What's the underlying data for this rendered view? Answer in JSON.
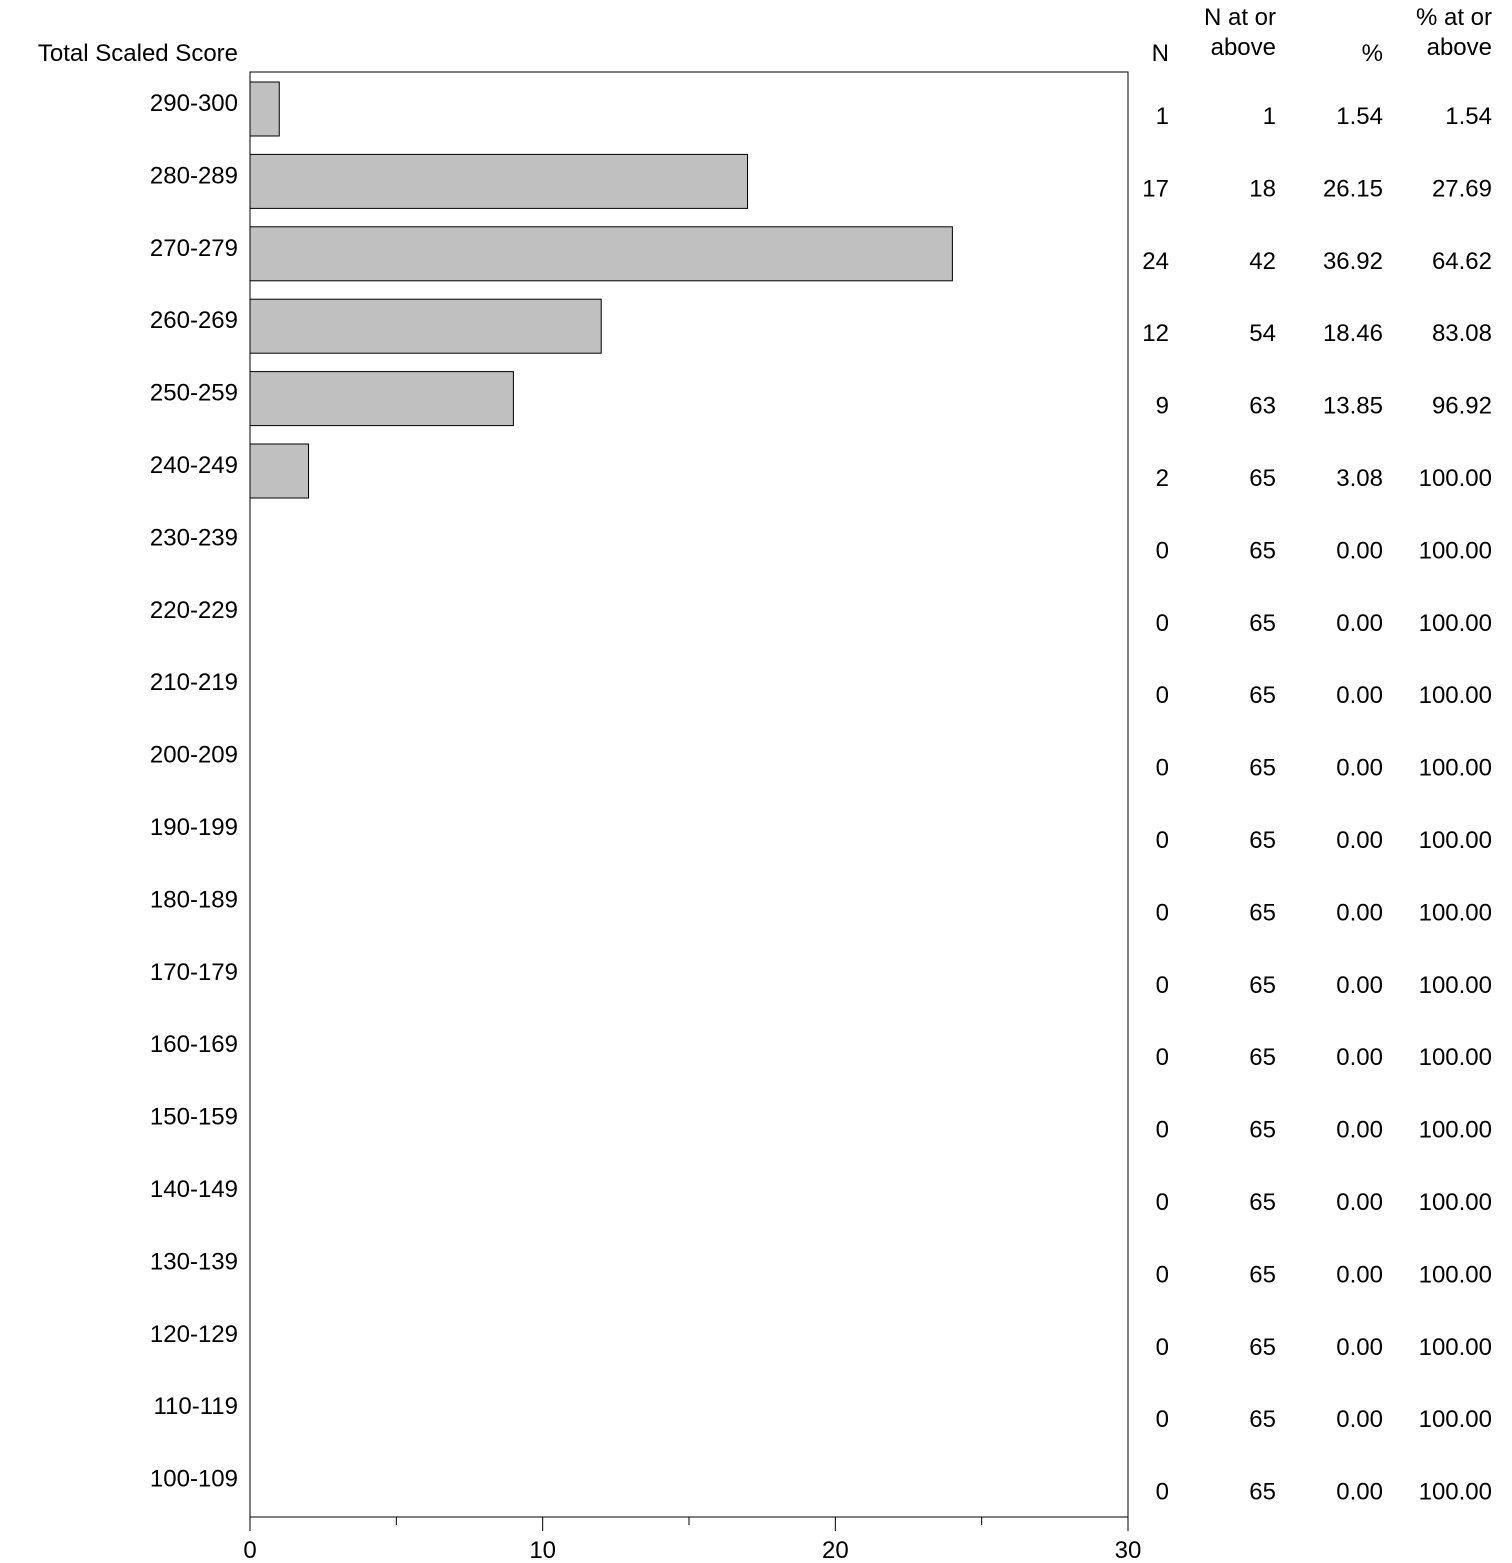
{
  "chart_data": {
    "type": "bar",
    "orientation": "horizontal",
    "ylabel": "Total Scaled Score",
    "categories": [
      "290-300",
      "280-289",
      "270-279",
      "260-269",
      "250-259",
      "240-249",
      "230-239",
      "220-229",
      "210-219",
      "200-209",
      "190-199",
      "180-189",
      "170-179",
      "160-169",
      "150-159",
      "140-149",
      "130-139",
      "120-129",
      "110-119",
      "100-109"
    ],
    "values": [
      1,
      17,
      24,
      12,
      9,
      2,
      0,
      0,
      0,
      0,
      0,
      0,
      0,
      0,
      0,
      0,
      0,
      0,
      0,
      0
    ],
    "xlim": [
      0,
      30
    ],
    "xticks": [
      0,
      10,
      20,
      30
    ],
    "grid": false,
    "bar_color": "#c0c0c0",
    "table": {
      "headers": [
        {
          "line1": "",
          "line2": "N"
        },
        {
          "line1": "N at or",
          "line2": "above"
        },
        {
          "line1": "",
          "line2": "%"
        },
        {
          "line1": "% at or",
          "line2": "above"
        }
      ],
      "rows": [
        [
          "1",
          "1",
          "1.54",
          "1.54"
        ],
        [
          "17",
          "18",
          "26.15",
          "27.69"
        ],
        [
          "24",
          "42",
          "36.92",
          "64.62"
        ],
        [
          "12",
          "54",
          "18.46",
          "83.08"
        ],
        [
          "9",
          "63",
          "13.85",
          "96.92"
        ],
        [
          "2",
          "65",
          "3.08",
          "100.00"
        ],
        [
          "0",
          "65",
          "0.00",
          "100.00"
        ],
        [
          "0",
          "65",
          "0.00",
          "100.00"
        ],
        [
          "0",
          "65",
          "0.00",
          "100.00"
        ],
        [
          "0",
          "65",
          "0.00",
          "100.00"
        ],
        [
          "0",
          "65",
          "0.00",
          "100.00"
        ],
        [
          "0",
          "65",
          "0.00",
          "100.00"
        ],
        [
          "0",
          "65",
          "0.00",
          "100.00"
        ],
        [
          "0",
          "65",
          "0.00",
          "100.00"
        ],
        [
          "0",
          "65",
          "0.00",
          "100.00"
        ],
        [
          "0",
          "65",
          "0.00",
          "100.00"
        ],
        [
          "0",
          "65",
          "0.00",
          "100.00"
        ],
        [
          "0",
          "65",
          "0.00",
          "100.00"
        ],
        [
          "0",
          "65",
          "0.00",
          "100.00"
        ],
        [
          "0",
          "65",
          "0.00",
          "100.00"
        ]
      ]
    }
  }
}
